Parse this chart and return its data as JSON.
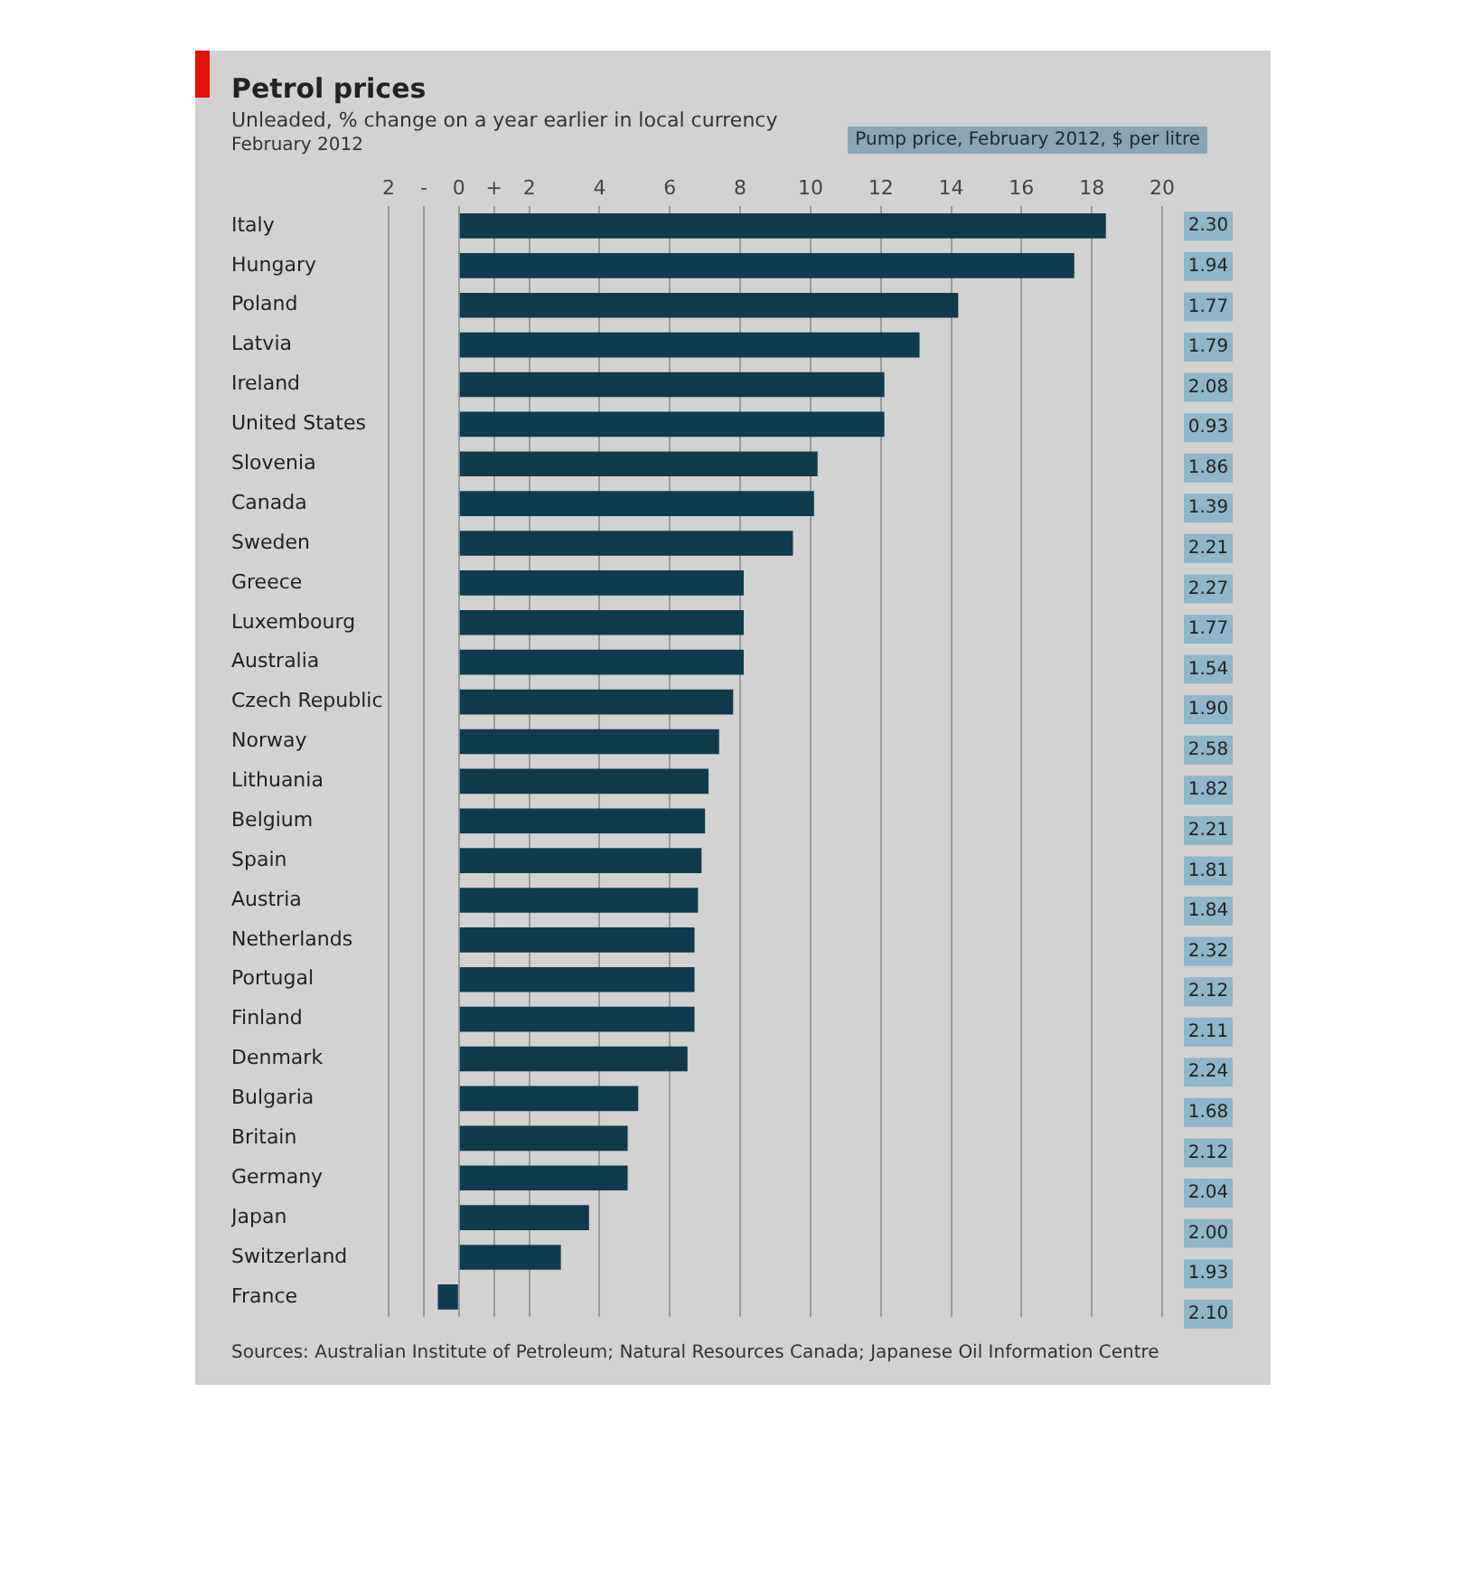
{
  "chart_data": [
    {
      "type": "bar",
      "orientation": "horizontal",
      "title": "Petrol prices",
      "subtitle": "Unleaded, % change on a year earlier in local currency",
      "annotations": [
        "February 2012",
        "Sources: Australian Institute of Petroleum; Natural Resources Canada; Japanese Oil Information Centre"
      ],
      "categories": [
        "Italy",
        "Hungary",
        "Poland",
        "Latvia",
        "Ireland",
        "United States",
        "Slovenia",
        "Canada",
        "Sweden",
        "Greece",
        "Luxembourg",
        "Australia",
        "Czech Republic",
        "Norway",
        "Lithuania",
        "Belgium",
        "Spain",
        "Austria",
        "Netherlands",
        "Portugal",
        "Finland",
        "Denmark",
        "Bulgaria",
        "Britain",
        "Germany",
        "Japan",
        "Switzerland",
        "France"
      ],
      "values": [
        18.4,
        17.5,
        14.2,
        13.1,
        12.1,
        12.1,
        10.2,
        10.1,
        9.5,
        8.1,
        8.1,
        8.1,
        7.8,
        7.4,
        7.1,
        7.0,
        6.9,
        6.8,
        6.7,
        6.7,
        6.7,
        6.5,
        5.1,
        4.8,
        4.8,
        3.7,
        2.9,
        -0.6
      ],
      "color": "#0f3b4c",
      "xlim": [
        -2,
        20
      ],
      "xticks": [
        {
          "value": -2,
          "label": "2"
        },
        {
          "value": -1,
          "label": "-"
        },
        0,
        {
          "value": 1,
          "label": "+"
        },
        2,
        4,
        6,
        8,
        10,
        12,
        14,
        16,
        18,
        20
      ],
      "grid": "x",
      "legend": false
    },
    {
      "type": "other",
      "title": "Pump price, February 2012, $ per litre",
      "categories": [
        null,
        null,
        null,
        null,
        null,
        null,
        null,
        null,
        null,
        null,
        null,
        null,
        null,
        null,
        null,
        null,
        null,
        null,
        null,
        null,
        null,
        null,
        null,
        null,
        null,
        null,
        null,
        null
      ],
      "values": [
        2.3,
        1.94,
        1.77,
        1.79,
        2.08,
        0.93,
        1.86,
        1.39,
        2.21,
        2.27,
        1.77,
        1.54,
        1.9,
        2.58,
        1.82,
        2.21,
        1.81,
        1.84,
        2.32,
        2.12,
        2.11,
        2.24,
        1.68,
        2.12,
        2.04,
        2.0,
        1.93,
        2.1
      ],
      "value_labels": [
        "2.30",
        "1.94",
        "1.77",
        "1.79",
        "2.08",
        "0.93",
        "1.86",
        "1.39",
        "2.21",
        "2.27",
        "1.77",
        "1.54",
        "1.90",
        "2.58",
        "1.82",
        "2.21",
        "1.81",
        "1.84",
        "2.32",
        "2.12",
        "2.11",
        "2.24",
        "1.68",
        "2.12",
        "2.04",
        "2.00",
        "1.93",
        "2.10"
      ],
      "color": "#8fb6ca",
      "data_labels": true
    }
  ]
}
